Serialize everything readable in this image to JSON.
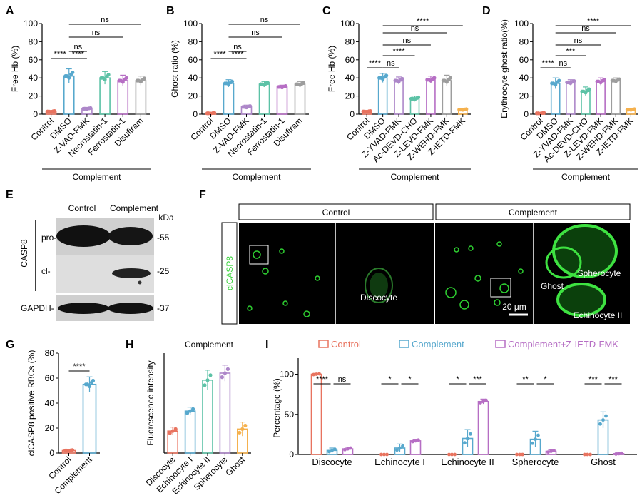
{
  "colors": {
    "control": "#e8735f",
    "dmso": "#57a8cd",
    "zvad": "#ad87c9",
    "necro": "#5cc2a6",
    "ferro": "#b66ec4",
    "disulfiram": "#9d9d9d",
    "acdevd": "#5cc2a6",
    "zlevd": "#b66ec4",
    "zwehd": "#9d9d9d",
    "zietd": "#f5b14e",
    "complement": "#57a8cd",
    "complement_ietd": "#b66ec4",
    "echinocyteI": "#57a8cd",
    "echinocyteII": "#5cc2a6",
    "spherocyte": "#ad87c9",
    "ghost": "#f5b14e",
    "discocyte": "#e8735f",
    "fluor": "#39d33b"
  },
  "chart_data": [
    {
      "panel": "A",
      "type": "bar",
      "ylabel": "Free Hb (%)",
      "ylim": [
        0,
        100
      ],
      "yticks": [
        "0",
        "20",
        "40",
        "60",
        "80",
        "100"
      ],
      "categories": [
        "Control",
        "DMSO",
        "Z-VAD-FMK",
        "Necrostatin-1",
        "Ferrostatin-1",
        "Disufiram"
      ],
      "values": [
        3,
        42,
        6,
        40,
        37,
        37
      ],
      "errors": [
        1,
        8,
        1.5,
        7,
        6,
        5
      ],
      "group_label": "Complement",
      "significance": [
        [
          "****",
          "ns",
          "ns",
          "ns"
        ],
        [
          "****"
        ]
      ]
    },
    {
      "panel": "B",
      "type": "bar",
      "ylabel": "Ghost ratio (%)",
      "ylim": [
        0,
        100
      ],
      "yticks": [
        "0",
        "20",
        "40",
        "60",
        "80",
        "100"
      ],
      "categories": [
        "Control",
        "DMSO",
        "Z-VAD-FMK",
        "Necrostatin-1",
        "Ferrostatin-1",
        "Disufiram"
      ],
      "values": [
        1,
        34,
        8,
        33,
        30,
        33
      ],
      "errors": [
        1,
        4,
        2,
        3,
        2,
        3
      ],
      "group_label": "Complement",
      "significance": [
        [
          "****",
          "****",
          "ns",
          "ns",
          "ns"
        ]
      ]
    },
    {
      "panel": "C",
      "type": "bar",
      "ylabel": "Free Hb (%)",
      "ylim": [
        0,
        100
      ],
      "yticks": [
        "0",
        "20",
        "40",
        "60",
        "80",
        "100"
      ],
      "categories": [
        "Control",
        "DMSO",
        "Z-YVAD-FMK",
        "Ac-DEVD-CHO",
        "Z-LEVD-FMK",
        "Z-WEHD-FMK",
        "Z-IETD-FMK"
      ],
      "values": [
        3,
        40,
        37,
        17,
        38,
        37,
        5
      ],
      "errors": [
        1,
        5,
        4,
        3,
        4,
        6,
        1
      ],
      "group_label": "Complement",
      "significance": [
        [
          "****",
          "ns",
          "****",
          "ns",
          "ns",
          "ns",
          "****"
        ]
      ]
    },
    {
      "panel": "D",
      "type": "bar",
      "ylabel": "Erythrocyte ghost ratio(%)",
      "ylim": [
        0,
        100
      ],
      "yticks": [
        "0",
        "20",
        "40",
        "60",
        "80",
        "100"
      ],
      "categories": [
        "Control",
        "DMSO",
        "Z-YVAD-FMK",
        "Ac-DEVD-CHO",
        "Z-LEVD-FMK",
        "Z-WEHD-FMK",
        "Z-IETD-FMK"
      ],
      "values": [
        1,
        34,
        35,
        25,
        36,
        37,
        5
      ],
      "errors": [
        1,
        6,
        3,
        5,
        4,
        3,
        1
      ],
      "group_label": "Complement",
      "significance": [
        [
          "****",
          "ns",
          "***",
          "ns",
          "ns",
          "ns",
          "****"
        ]
      ]
    },
    {
      "panel": "G",
      "type": "bar",
      "ylabel": "clCASP8 positive RBCs (%)",
      "ylim": [
        0,
        80
      ],
      "yticks": [
        "0",
        "20",
        "40",
        "60",
        "80"
      ],
      "categories": [
        "Control",
        "Complement"
      ],
      "values": [
        2,
        55
      ],
      "errors": [
        0.8,
        6
      ],
      "significance": [
        [
          "****"
        ]
      ]
    },
    {
      "panel": "H",
      "type": "bar",
      "title": "Complement",
      "ylabel": "Fluorescence intensity",
      "categories": [
        "Discocyte",
        "Echinocyte I",
        "Echinocyte II",
        "Spherocyte",
        "Ghost"
      ],
      "values": [
        2.2,
        4.2,
        7.3,
        8.0,
        2.4
      ],
      "errors": [
        0.4,
        0.4,
        1.0,
        0.8,
        0.7
      ],
      "ylim": [
        0,
        10
      ]
    },
    {
      "panel": "I",
      "type": "bar",
      "ylabel": "Percentage  (%)",
      "ylim": [
        0,
        120
      ],
      "yticks": [
        "0",
        "50",
        "100"
      ],
      "categories": [
        "Discocyte",
        "Echinocyte I",
        "Echinocyte II",
        "Spherocyte",
        "Ghost"
      ],
      "series": [
        {
          "name": "Control",
          "values": [
            100,
            0,
            0,
            0,
            0
          ],
          "errors": [
            1,
            0,
            0,
            0,
            0
          ]
        },
        {
          "name": "Complement",
          "values": [
            5,
            8,
            20,
            19,
            43
          ],
          "errors": [
            3,
            5,
            11,
            10,
            10
          ]
        },
        {
          "name": "Complement+Z-IETD-FMK",
          "values": [
            7,
            17,
            66,
            4,
            1
          ],
          "errors": [
            2,
            2,
            3,
            2,
            1
          ]
        }
      ],
      "significance": [
        [
          "****",
          "ns"
        ],
        [
          "*",
          "*"
        ],
        [
          "*",
          "***"
        ],
        [
          "**",
          "*"
        ],
        [
          "***",
          "***"
        ]
      ]
    }
  ],
  "panel_letters": [
    "A",
    "B",
    "C",
    "D",
    "E",
    "F",
    "G",
    "H",
    "I"
  ],
  "blot": {
    "headers": [
      "Control",
      "Complement"
    ],
    "kda": "kDa",
    "protein": "CASP8",
    "rows": [
      "pro-",
      "cl-",
      "GAPDH-"
    ],
    "markers": [
      "-55",
      "-25",
      "-37"
    ]
  },
  "micro": {
    "headers": [
      "Control",
      "Complement"
    ],
    "stain": "clCASP8",
    "labels": [
      "Discocyte",
      "Spherocyte",
      "Ghost",
      "Echinocyte II"
    ],
    "scale": "20 μm"
  }
}
